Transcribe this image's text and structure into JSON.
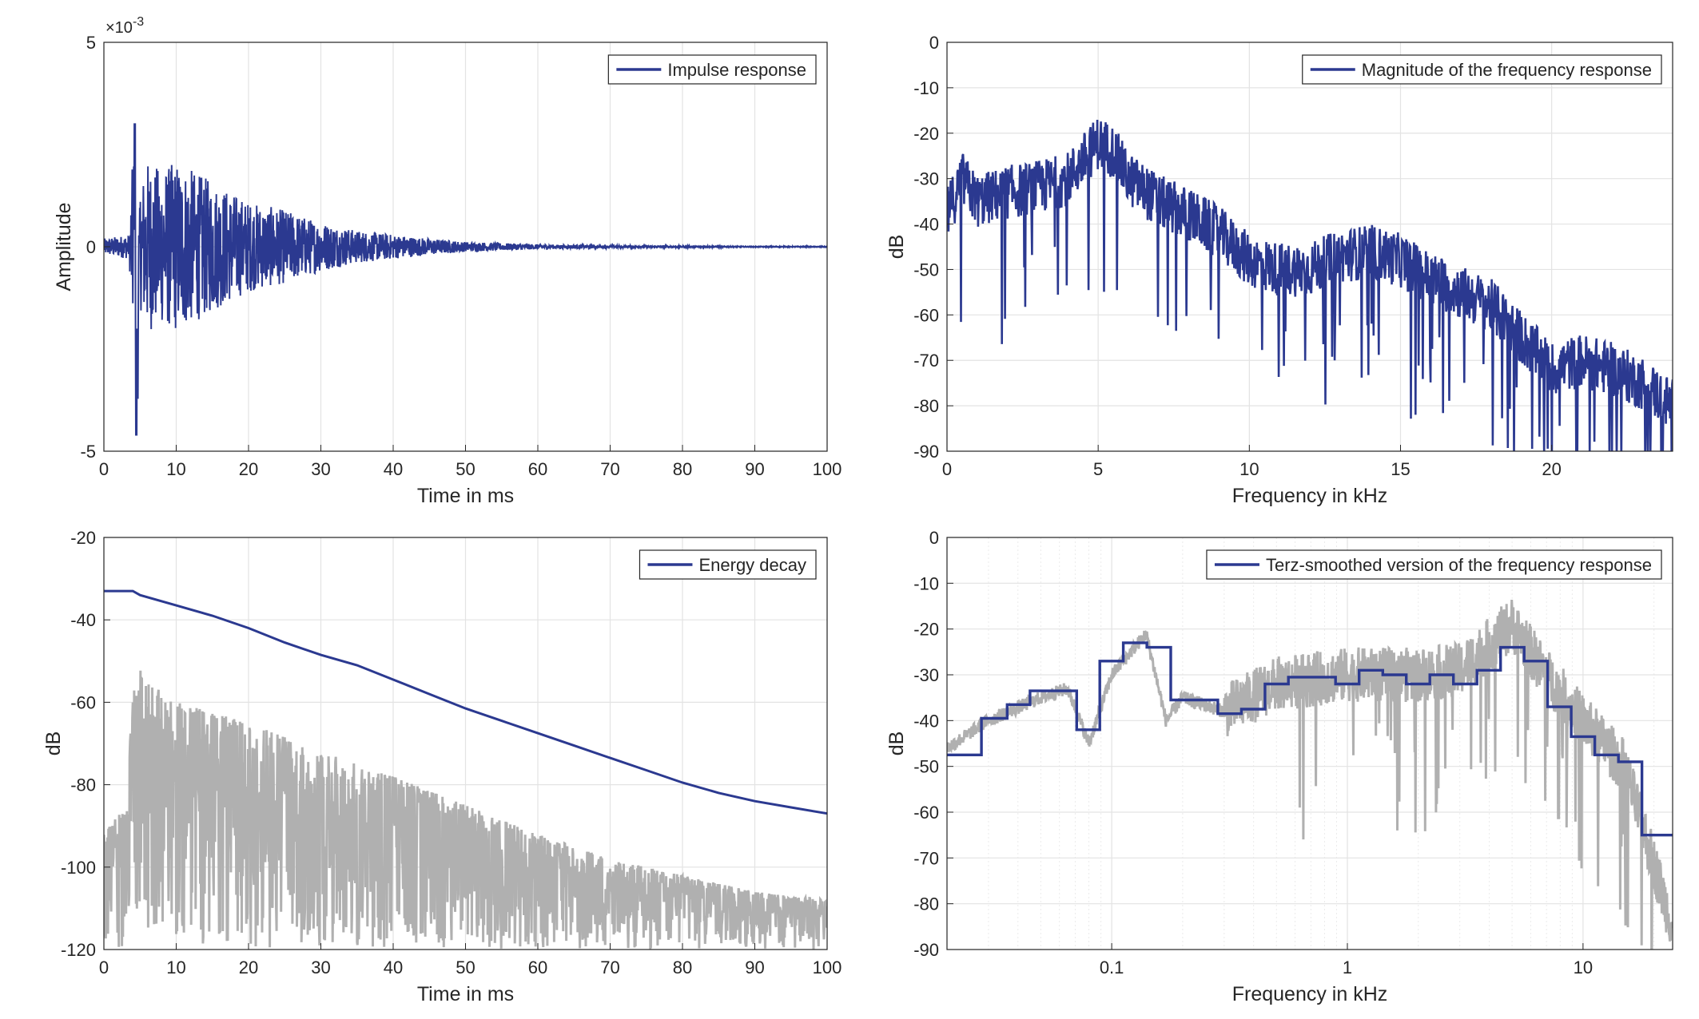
{
  "colors": {
    "series_blue": "#2b3990",
    "reference_gray": "#b0b0b0",
    "grid": "#e3e3e3",
    "axes": "#262626"
  },
  "chart_data": [
    {
      "id": "impulse",
      "type": "line",
      "xlabel": "Time in ms",
      "ylabel": "Amplitude",
      "xlim": [
        0,
        100
      ],
      "ylim": [
        -0.005,
        0.005
      ],
      "xticks": [
        "0",
        "10",
        "20",
        "30",
        "40",
        "50",
        "60",
        "70",
        "80",
        "90",
        "100"
      ],
      "yticks": [
        "-5",
        "0",
        "5"
      ],
      "exponent_label": "×10",
      "exponent_power": "-3",
      "legend": {
        "location": "top-right",
        "entries": [
          "Impulse response"
        ]
      },
      "grid": true,
      "series": [
        {
          "name": "Impulse response",
          "color_key": "series_blue",
          "description_points": {
            "x": [
              0,
              3.5,
              4.2,
              4.4,
              4.6,
              5.0,
              6,
              8,
              10,
              15,
              20,
              25,
              30,
              35,
              40,
              45,
              50,
              60,
              70,
              80,
              90,
              100
            ],
            "y_envelope": [
              0.0002,
              0.0003,
              0.003,
              -0.0046,
              -0.0037,
              0.0015,
              0.0021,
              0.0019,
              0.0021,
              0.0016,
              0.0011,
              0.0009,
              0.0006,
              0.0004,
              0.0003,
              0.0002,
              0.00012,
              6e-05,
              3e-05,
              2e-05,
              1e-05,
              1e-05
            ]
          }
        }
      ]
    },
    {
      "id": "magnitude",
      "type": "line",
      "xlabel": "Frequency in kHz",
      "ylabel": "dB",
      "xlim": [
        0,
        24
      ],
      "ylim": [
        -90,
        0
      ],
      "xticks": [
        "0",
        "5",
        "10",
        "15",
        "20"
      ],
      "yticks": [
        "0",
        "-10",
        "-20",
        "-30",
        "-40",
        "-50",
        "-60",
        "-70",
        "-80",
        "-90"
      ],
      "legend": {
        "location": "top-right",
        "entries": [
          "Magnitude of the frequency response"
        ]
      },
      "grid": true,
      "series": [
        {
          "name": "Magnitude of the frequency response",
          "color_key": "series_blue",
          "envelope": {
            "x": [
              0,
              0.5,
              1,
              2,
              3,
              4,
              5,
              5.5,
              6,
              7,
              8,
              9,
              10,
              11,
              12,
              13,
              14,
              15,
              16,
              17,
              18,
              19,
              20,
              21,
              22,
              23,
              24
            ],
            "y": [
              -38,
              -30,
              -35,
              -33,
              -32,
              -30,
              -22,
              -24,
              -30,
              -35,
              -38,
              -42,
              -48,
              -50,
              -50,
              -47,
              -46,
              -48,
              -52,
              -55,
              -58,
              -65,
              -72,
              -70,
              -72,
              -75,
              -80
            ]
          }
        }
      ]
    },
    {
      "id": "energy",
      "type": "line",
      "xlabel": "Time in ms",
      "ylabel": "dB",
      "xlim": [
        0,
        100
      ],
      "ylim": [
        -120,
        -20
      ],
      "xticks": [
        "0",
        "10",
        "20",
        "30",
        "40",
        "50",
        "60",
        "70",
        "80",
        "90",
        "100"
      ],
      "yticks": [
        "-20",
        "-40",
        "-60",
        "-80",
        "-100",
        "-120"
      ],
      "legend": {
        "location": "top-right",
        "entries": [
          "Energy decay"
        ]
      },
      "grid": true,
      "series": [
        {
          "name": "Energy decay",
          "color_key": "series_blue",
          "x": [
            0,
            4,
            5,
            10,
            15,
            20,
            25,
            30,
            35,
            40,
            45,
            50,
            55,
            60,
            65,
            70,
            75,
            80,
            85,
            90,
            95,
            100
          ],
          "y": [
            -33,
            -33,
            -34,
            -36.5,
            -39,
            -42,
            -45.5,
            -48.5,
            -51,
            -54.5,
            -58,
            -61.5,
            -64.5,
            -67.5,
            -70.5,
            -73.5,
            -76.5,
            -79.5,
            -82,
            -84,
            -85.5,
            -87
          ]
        },
        {
          "color_key": "reference_gray",
          "envelope": {
            "x": [
              0,
              3,
              4.5,
              6,
              10,
              20,
              30,
              40,
              50,
              60,
              70,
              80,
              90,
              100
            ],
            "y_top": [
              -92,
              -85,
              -47,
              -55,
              -60,
              -65,
              -72,
              -78,
              -85,
              -92,
              -98,
              -102,
              -106,
              -108
            ],
            "y_bottom": [
              -120,
              -120,
              -110,
              -115,
              -118,
              -120,
              -120,
              -120,
              -120,
              -120,
              -120,
              -120,
              -120,
              -120
            ]
          }
        }
      ]
    },
    {
      "id": "terz",
      "type": "line",
      "xscale": "log",
      "xlabel": "Frequency in kHz",
      "ylabel": "dB",
      "xlim": [
        0.02,
        24
      ],
      "ylim": [
        -90,
        0
      ],
      "xticks": [
        "0.1",
        "1",
        "10"
      ],
      "xtick_values": [
        0.1,
        1,
        10
      ],
      "yticks": [
        "0",
        "-10",
        "-20",
        "-30",
        "-40",
        "-50",
        "-60",
        "-70",
        "-80",
        "-90"
      ],
      "legend": {
        "location": "top-right",
        "entries": [
          "Terz-smoothed version of the frequency response"
        ]
      },
      "grid": true,
      "series": [
        {
          "name": "Terz-smoothed version of the frequency response",
          "color_key": "series_blue",
          "band_edges": [
            0.02,
            0.028,
            0.036,
            0.045,
            0.056,
            0.071,
            0.089,
            0.112,
            0.141,
            0.178,
            0.224,
            0.282,
            0.355,
            0.447,
            0.562,
            0.708,
            0.891,
            1.122,
            1.413,
            1.778,
            2.239,
            2.818,
            3.548,
            4.467,
            5.623,
            7.079,
            8.913,
            11.22,
            14.13,
            17.78,
            24
          ],
          "levels": [
            -47.5,
            -39.5,
            -36.5,
            -33.5,
            -33.5,
            -42,
            -27,
            -23,
            -24,
            -35.5,
            -35.5,
            -38.5,
            -37.5,
            -32,
            -30.5,
            -30.5,
            -32,
            -29,
            -30,
            -32,
            -30,
            -32,
            -29,
            -24,
            -27,
            -37,
            -43.5,
            -47.5,
            -49,
            -65
          ]
        },
        {
          "color_key": "reference_gray",
          "envelope": {
            "x": [
              0.02,
              0.03,
              0.05,
              0.065,
              0.08,
              0.1,
              0.14,
              0.17,
              0.2,
              0.3,
              0.5,
              1,
              2,
              3,
              5,
              7,
              10,
              15,
              24
            ],
            "y": [
              -46,
              -40,
              -35,
              -33,
              -45,
              -30,
              -21,
              -40,
              -35,
              -38,
              -32,
              -30,
              -30,
              -29,
              -19,
              -30,
              -40,
              -50,
              -85
            ]
          }
        }
      ]
    }
  ]
}
